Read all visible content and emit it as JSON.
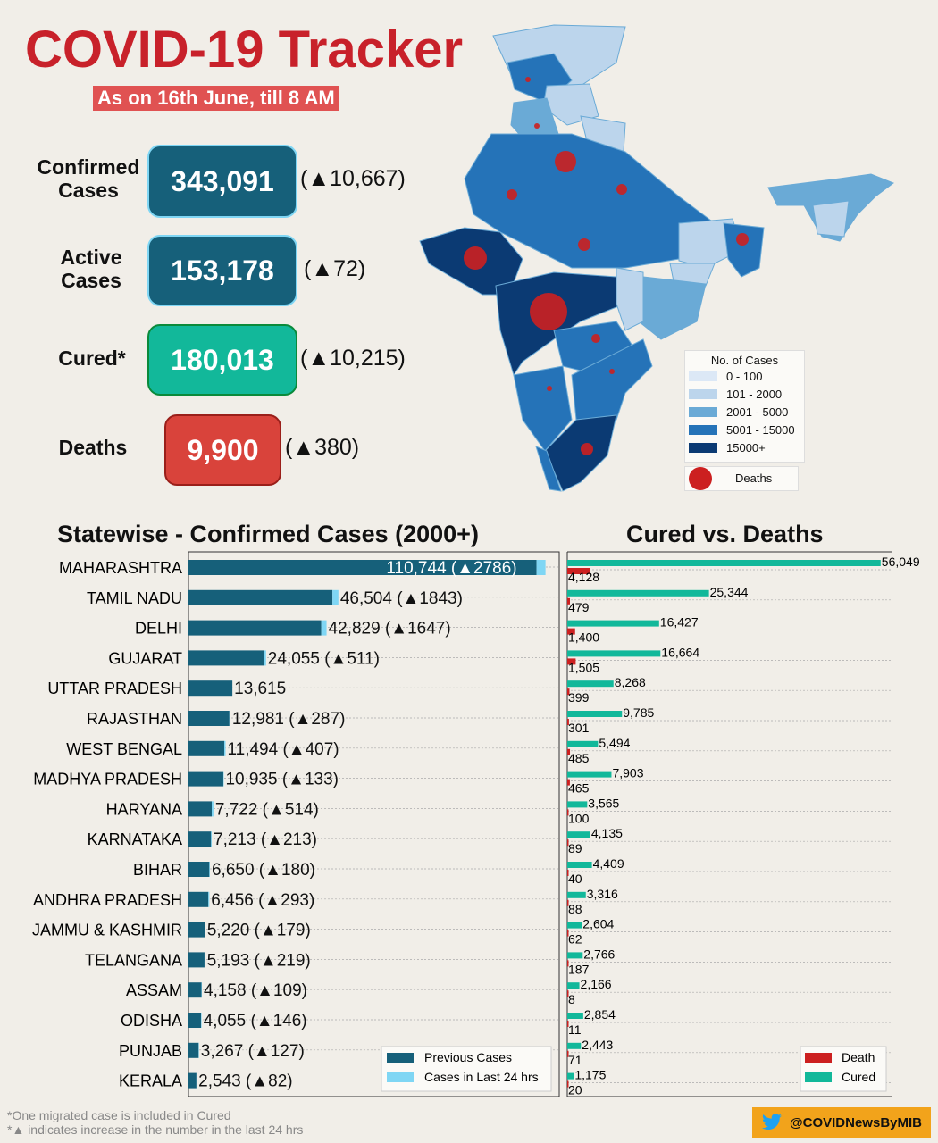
{
  "header": {
    "title": "COVID-19 Tracker",
    "subtitle": "As on 16th June, till 8 AM"
  },
  "stats": [
    {
      "label": "Confirmed Cases",
      "value": "343,091",
      "delta": "(▲10,667)",
      "color": "#16607a"
    },
    {
      "label": "Active Cases",
      "value": "153,178",
      "delta": "(▲72)",
      "color": "#16607a"
    },
    {
      "label": "Cured*",
      "value": "180,013",
      "delta": "(▲10,215)",
      "color": "#12b89a"
    },
    {
      "label": "Deaths",
      "value": "9,900",
      "delta": "(▲380)",
      "color": "#d9433b"
    }
  ],
  "map_legend": {
    "title": "No. of Cases",
    "items": [
      "0 - 100",
      "101 - 2000",
      "2001 - 5000",
      "5001 - 15000",
      "15000+"
    ],
    "colors": [
      "#dce8f6",
      "#bcd5ec",
      "#6aaad6",
      "#2573b8",
      "#0b3a73"
    ],
    "deaths_label": "Deaths",
    "deaths_color": "#cc2020"
  },
  "chart_data": [
    {
      "type": "bar",
      "orientation": "horizontal",
      "title": "Statewise - Confirmed Cases (2000+)",
      "categories": [
        "MAHARASHTRA",
        "TAMIL NADU",
        "DELHI",
        "GUJARAT",
        "UTTAR PRADESH",
        "RAJASTHAN",
        "WEST BENGAL",
        "MADHYA PRADESH",
        "HARYANA",
        "KARNATAKA",
        "BIHAR",
        "ANDHRA PRADESH",
        "JAMMU & KASHMIR",
        "TELANGANA",
        "ASSAM",
        "ODISHA",
        "PUNJAB",
        "KERALA"
      ],
      "series": [
        {
          "name": "Previous Cases",
          "values": [
            107958,
            44661,
            41182,
            23544,
            13615,
            12694,
            11087,
            10802,
            7208,
            7000,
            6470,
            6163,
            5041,
            4974,
            4049,
            3909,
            3140,
            2461
          ],
          "color": "#16607a"
        },
        {
          "name": "Cases in Last 24 hrs",
          "values": [
            2786,
            1843,
            1647,
            511,
            0,
            287,
            407,
            133,
            514,
            213,
            180,
            293,
            179,
            219,
            109,
            146,
            127,
            82
          ],
          "color": "#7fd6f4"
        }
      ],
      "labels": [
        "110,744 (▲2786)",
        "46,504 (▲1843)",
        "42,829 (▲1647)",
        "24,055 (▲511)",
        "13,615",
        "12,981 (▲287)",
        "11,494 (▲407)",
        "10,935 (▲133)",
        "7,722 (▲514)",
        "7,213 (▲213)",
        "6,650 (▲180)",
        "6,456 (▲293)",
        "5,220 (▲179)",
        "5,193 (▲219)",
        "4,158 (▲109)",
        "4,055 (▲146)",
        "3,267 (▲127)",
        "2,543 (▲82)"
      ],
      "legend_position": "bottom-right"
    },
    {
      "type": "bar",
      "orientation": "horizontal",
      "title": "Cured vs. Deaths",
      "categories": [
        "MAHARASHTRA",
        "TAMIL NADU",
        "DELHI",
        "GUJARAT",
        "UTTAR PRADESH",
        "RAJASTHAN",
        "WEST BENGAL",
        "MADHYA PRADESH",
        "HARYANA",
        "KARNATAKA",
        "BIHAR",
        "ANDHRA PRADESH",
        "JAMMU & KASHMIR",
        "TELANGANA",
        "ASSAM",
        "ODISHA",
        "PUNJAB",
        "KERALA"
      ],
      "series": [
        {
          "name": "Cured",
          "values": [
            56049,
            25344,
            16427,
            16664,
            8268,
            9785,
            5494,
            7903,
            3565,
            4135,
            4409,
            3316,
            2604,
            2766,
            2166,
            2854,
            2443,
            1175
          ],
          "labels": [
            "56,049",
            "25,344",
            "16,427",
            "16,664",
            "8,268",
            "9,785",
            "5,494",
            "7,903",
            "3,565",
            "4,135",
            "4,409",
            "3,316",
            "2,604",
            "2,766",
            "2,166",
            "2,854",
            "2,443",
            "1,175"
          ],
          "color": "#12b89a"
        },
        {
          "name": "Death",
          "values": [
            4128,
            479,
            1400,
            1505,
            399,
            301,
            485,
            465,
            100,
            89,
            40,
            88,
            62,
            187,
            8,
            11,
            71,
            20
          ],
          "labels": [
            "4,128",
            "479",
            "1,400",
            "1,505",
            "399",
            "301",
            "485",
            "465",
            "100",
            "89",
            "40",
            "88",
            "62",
            "187",
            "8",
            "11",
            "71",
            "20"
          ],
          "color": "#cc2020"
        }
      ],
      "legend_position": "bottom-right"
    }
  ],
  "footnotes": [
    "*One migrated case is included in Cured",
    "*▲ indicates increase in the number in the last 24 hrs"
  ],
  "twitter_handle": "@COVIDNewsByMIB"
}
